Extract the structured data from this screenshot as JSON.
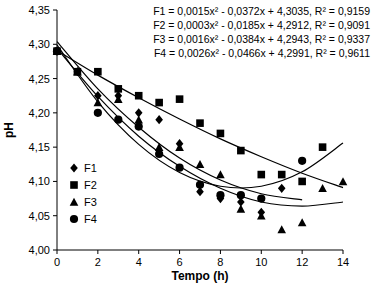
{
  "chart_data": {
    "type": "scatter",
    "x_label": "Tempo (h)",
    "y_label": "pH",
    "annotations": [
      "F1 = 0,0015x² - 0,0372x + 4,3035, R² = 0,9159",
      "F2 = 0,0003x² - 0,0185x + 4,2912, R² = 0,9091",
      "F3 = 0,0016x² - 0,0384x + 4,2943, R² = 0,9337",
      "F4 = 0,0026x² - 0,0466x + 4,2991, R² = 0,9611"
    ],
    "xlim": [
      0,
      14
    ],
    "xticks": [
      0,
      2,
      4,
      6,
      8,
      10,
      12,
      14
    ],
    "ylim": [
      4.0,
      4.35
    ],
    "yticks": [
      {
        "value": 4.0,
        "label": "4,00"
      },
      {
        "value": 4.05,
        "label": "4,05"
      },
      {
        "value": 4.1,
        "label": "4,10"
      },
      {
        "value": 4.15,
        "label": "4,15"
      },
      {
        "value": 4.2,
        "label": "4,20"
      },
      {
        "value": 4.25,
        "label": "4,25"
      },
      {
        "value": 4.3,
        "label": "4,30"
      },
      {
        "value": 4.35,
        "label": "4,35"
      }
    ],
    "grid": false,
    "legend": "left",
    "series": [
      {
        "name": "F1",
        "type": "scatter",
        "marker": "diamond",
        "color": "#000000",
        "x": [
          0,
          1,
          2,
          3,
          4,
          5,
          6,
          7,
          8,
          9,
          10,
          11
        ],
        "values": [
          4.29,
          4.26,
          4.225,
          4.225,
          4.2,
          4.19,
          4.155,
          4.085,
          4.075,
          4.07,
          4.055,
          4.09
        ]
      },
      {
        "name": "F2",
        "type": "scatter",
        "marker": "square",
        "color": "#000000",
        "x": [
          0,
          1,
          2,
          3,
          4,
          5,
          6,
          7,
          8,
          9,
          10,
          11,
          12,
          13
        ],
        "values": [
          4.29,
          4.26,
          4.26,
          4.235,
          4.225,
          4.215,
          4.22,
          4.185,
          4.17,
          4.145,
          4.11,
          4.11,
          4.1,
          4.15
        ]
      },
      {
        "name": "F3",
        "type": "scatter",
        "marker": "triangle",
        "color": "#000000",
        "x": [
          0,
          1,
          2,
          3,
          4,
          5,
          6,
          7,
          8,
          9,
          10,
          11,
          12,
          13,
          14
        ],
        "values": [
          4.29,
          4.26,
          4.215,
          4.22,
          4.19,
          4.15,
          4.15,
          4.125,
          4.11,
          4.06,
          4.05,
          4.03,
          4.04,
          4.09,
          4.1
        ]
      },
      {
        "name": "F4",
        "type": "scatter",
        "marker": "circle",
        "color": "#000000",
        "x": [
          0,
          2,
          3,
          4,
          5,
          6,
          7,
          8,
          9,
          10,
          12
        ],
        "values": [
          4.29,
          4.2,
          4.19,
          4.18,
          4.14,
          4.12,
          4.095,
          4.08,
          4.08,
          4.075,
          4.13
        ]
      },
      {
        "type": "line",
        "line_style": "solid",
        "color": "#000000",
        "x": [
          0,
          2,
          4,
          6,
          8,
          10,
          12
        ],
        "values": [
          4.304,
          4.235,
          4.179,
          4.134,
          4.102,
          4.082,
          4.073
        ]
      },
      {
        "type": "line",
        "line_style": "solid",
        "color": "#000000",
        "x": [
          0,
          2,
          4,
          6,
          8,
          10,
          12,
          14
        ],
        "values": [
          4.291,
          4.255,
          4.222,
          4.191,
          4.162,
          4.136,
          4.112,
          4.091
        ]
      },
      {
        "type": "line",
        "line_style": "solid",
        "color": "#000000",
        "x": [
          0,
          2,
          4,
          6,
          8,
          10,
          12,
          14
        ],
        "values": [
          4.294,
          4.224,
          4.166,
          4.122,
          4.09,
          4.07,
          4.064,
          4.07
        ]
      },
      {
        "type": "line",
        "line_style": "solid",
        "color": "#000000",
        "x": [
          0,
          2,
          4,
          6,
          8,
          10,
          12,
          14
        ],
        "values": [
          4.299,
          4.216,
          4.154,
          4.113,
          4.093,
          4.093,
          4.114,
          4.156
        ]
      }
    ]
  }
}
